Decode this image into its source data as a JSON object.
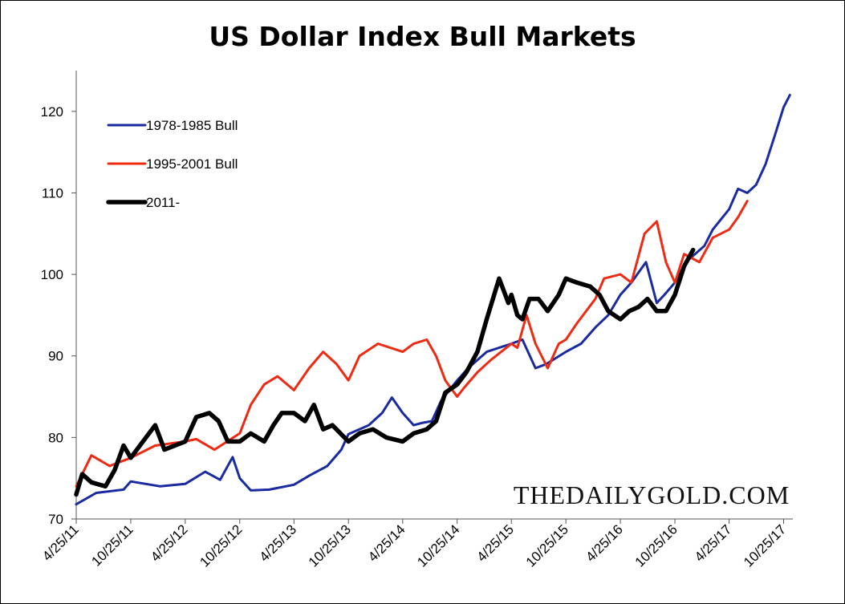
{
  "chart_data": {
    "type": "line",
    "title": "US Dollar Index Bull Markets",
    "xlabel": "",
    "ylabel": "",
    "ylim": [
      70,
      125
    ],
    "y_ticks": [
      70,
      80,
      90,
      100,
      110,
      120
    ],
    "x_ticks": [
      "4/25/11",
      "10/25/11",
      "4/25/12",
      "10/25/12",
      "4/25/13",
      "10/25/13",
      "4/25/14",
      "10/25/14",
      "4/25/15",
      "10/25/15",
      "4/25/16",
      "10/25/16",
      "4/25/17",
      "10/25/17"
    ],
    "xlim": [
      "4/25/11",
      "11/25/17"
    ],
    "grid": false,
    "legend_position": "top-left",
    "series": [
      {
        "name": "1978-1985 Bull",
        "color": "#1a2aa0",
        "points": [
          [
            "4/25/11",
            71.8
          ],
          [
            "7/1/11",
            73.2
          ],
          [
            "10/1/11",
            73.6
          ],
          [
            "10/25/11",
            74.6
          ],
          [
            "2/1/12",
            74.0
          ],
          [
            "4/25/12",
            74.3
          ],
          [
            "7/1/12",
            75.8
          ],
          [
            "8/20/12",
            74.8
          ],
          [
            "10/1/12",
            77.6
          ],
          [
            "10/25/12",
            75.0
          ],
          [
            "12/1/12",
            73.5
          ],
          [
            "2/1/13",
            73.6
          ],
          [
            "4/25/13",
            74.2
          ],
          [
            "6/15/13",
            75.3
          ],
          [
            "8/15/13",
            76.5
          ],
          [
            "10/1/13",
            78.5
          ],
          [
            "10/25/13",
            80.4
          ],
          [
            "1/1/14",
            81.5
          ],
          [
            "2/15/14",
            83.0
          ],
          [
            "3/20/14",
            84.9
          ],
          [
            "4/25/14",
            83.0
          ],
          [
            "6/1/14",
            81.5
          ],
          [
            "7/1/14",
            81.8
          ],
          [
            "8/1/14",
            82.0
          ],
          [
            "9/1/14",
            84.5
          ],
          [
            "10/25/14",
            87.0
          ],
          [
            "12/1/14",
            88.5
          ],
          [
            "2/1/15",
            90.5
          ],
          [
            "4/25/15",
            91.5
          ],
          [
            "6/1/15",
            92.0
          ],
          [
            "7/15/15",
            88.5
          ],
          [
            "8/20/15",
            89.0
          ],
          [
            "10/25/15",
            90.5
          ],
          [
            "12/15/15",
            91.5
          ],
          [
            "2/1/16",
            93.5
          ],
          [
            "3/15/16",
            95.0
          ],
          [
            "4/25/16",
            97.5
          ],
          [
            "6/1/16",
            99.0
          ],
          [
            "7/20/16",
            101.5
          ],
          [
            "8/25/16",
            96.5
          ],
          [
            "9/20/16",
            97.5
          ],
          [
            "10/25/16",
            99.0
          ],
          [
            "12/1/16",
            101.5
          ],
          [
            "2/1/17",
            103.5
          ],
          [
            "3/1/17",
            105.5
          ],
          [
            "4/25/17",
            108.0
          ],
          [
            "5/25/17",
            110.5
          ],
          [
            "6/25/17",
            110.0
          ],
          [
            "7/25/17",
            111.0
          ],
          [
            "8/25/17",
            113.5
          ],
          [
            "9/25/17",
            117.0
          ],
          [
            "10/25/17",
            120.5
          ],
          [
            "11/15/17",
            122.0
          ]
        ]
      },
      {
        "name": "1995-2001 Bull",
        "color": "#ee2a12",
        "points": [
          [
            "4/25/11",
            74.0
          ],
          [
            "6/15/11",
            77.8
          ],
          [
            "8/15/11",
            76.5
          ],
          [
            "10/25/11",
            77.5
          ],
          [
            "1/15/12",
            79.0
          ],
          [
            "4/25/12",
            79.5
          ],
          [
            "6/1/12",
            79.8
          ],
          [
            "8/1/12",
            78.5
          ],
          [
            "10/25/12",
            80.5
          ],
          [
            "12/1/12",
            84.0
          ],
          [
            "1/15/13",
            86.5
          ],
          [
            "3/1/13",
            87.5
          ],
          [
            "4/25/13",
            85.8
          ],
          [
            "6/15/13",
            88.5
          ],
          [
            "8/1/13",
            90.5
          ],
          [
            "9/15/13",
            89.0
          ],
          [
            "10/25/13",
            87.0
          ],
          [
            "12/1/13",
            90.0
          ],
          [
            "2/1/14",
            91.5
          ],
          [
            "4/25/14",
            90.5
          ],
          [
            "6/1/14",
            91.5
          ],
          [
            "7/15/14",
            92.0
          ],
          [
            "8/15/14",
            90.0
          ],
          [
            "9/15/14",
            87.0
          ],
          [
            "10/25/14",
            85.0
          ],
          [
            "11/15/14",
            86.0
          ],
          [
            "1/1/15",
            88.0
          ],
          [
            "2/15/15",
            89.5
          ],
          [
            "4/25/15",
            91.5
          ],
          [
            "5/15/15",
            91.0
          ],
          [
            "6/15/15",
            95.0
          ],
          [
            "7/15/15",
            91.5
          ],
          [
            "8/25/15",
            88.5
          ],
          [
            "10/1/15",
            91.5
          ],
          [
            "10/25/15",
            92.0
          ],
          [
            "12/1/15",
            94.0
          ],
          [
            "2/1/16",
            97.0
          ],
          [
            "3/1/16",
            99.5
          ],
          [
            "4/25/16",
            100.0
          ],
          [
            "6/1/16",
            99.0
          ],
          [
            "7/15/16",
            105.0
          ],
          [
            "8/25/16",
            106.5
          ],
          [
            "9/25/16",
            101.5
          ],
          [
            "10/25/16",
            99.0
          ],
          [
            "11/25/16",
            102.5
          ],
          [
            "1/15/17",
            101.5
          ],
          [
            "3/1/17",
            104.5
          ],
          [
            "4/25/17",
            105.5
          ],
          [
            "5/25/17",
            107.0
          ],
          [
            "6/25/17",
            109.0
          ]
        ]
      },
      {
        "name": "2011-",
        "color": "#000000",
        "points": [
          [
            "4/25/11",
            73.0
          ],
          [
            "5/15/11",
            75.5
          ],
          [
            "6/15/11",
            74.5
          ],
          [
            "8/1/11",
            74.0
          ],
          [
            "9/1/11",
            76.0
          ],
          [
            "10/1/11",
            79.0
          ],
          [
            "10/25/11",
            77.5
          ],
          [
            "12/15/11",
            80.0
          ],
          [
            "1/15/12",
            81.5
          ],
          [
            "2/15/12",
            78.5
          ],
          [
            "4/25/12",
            79.5
          ],
          [
            "6/1/12",
            82.5
          ],
          [
            "7/15/12",
            83.0
          ],
          [
            "8/15/12",
            82.0
          ],
          [
            "9/15/12",
            79.5
          ],
          [
            "10/25/12",
            79.5
          ],
          [
            "12/1/12",
            80.5
          ],
          [
            "1/15/13",
            79.5
          ],
          [
            "2/15/13",
            81.5
          ],
          [
            "3/15/13",
            83.0
          ],
          [
            "4/25/13",
            83.0
          ],
          [
            "6/1/13",
            82.0
          ],
          [
            "7/1/13",
            84.0
          ],
          [
            "8/1/13",
            81.0
          ],
          [
            "9/1/13",
            81.5
          ],
          [
            "10/25/13",
            79.5
          ],
          [
            "12/1/13",
            80.5
          ],
          [
            "1/15/14",
            81.0
          ],
          [
            "3/1/14",
            80.0
          ],
          [
            "4/25/14",
            79.5
          ],
          [
            "6/1/14",
            80.5
          ],
          [
            "7/15/14",
            81.0
          ],
          [
            "8/15/14",
            82.0
          ],
          [
            "9/15/14",
            85.5
          ],
          [
            "10/25/14",
            86.5
          ],
          [
            "11/25/14",
            88.0
          ],
          [
            "1/1/15",
            90.5
          ],
          [
            "2/1/15",
            94.5
          ],
          [
            "3/15/15",
            99.5
          ],
          [
            "4/15/15",
            96.5
          ],
          [
            "4/25/15",
            97.5
          ],
          [
            "5/15/15",
            95.0
          ],
          [
            "6/1/15",
            94.5
          ],
          [
            "6/25/15",
            97.0
          ],
          [
            "7/25/15",
            97.0
          ],
          [
            "8/25/15",
            95.5
          ],
          [
            "10/1/15",
            97.5
          ],
          [
            "10/25/15",
            99.5
          ],
          [
            "12/1/15",
            99.0
          ],
          [
            "1/15/16",
            98.5
          ],
          [
            "2/15/16",
            97.5
          ],
          [
            "3/15/16",
            95.5
          ],
          [
            "4/25/16",
            94.5
          ],
          [
            "5/25/16",
            95.5
          ],
          [
            "6/25/16",
            96.0
          ],
          [
            "7/25/16",
            97.0
          ],
          [
            "8/25/16",
            95.5
          ],
          [
            "9/25/16",
            95.5
          ],
          [
            "10/25/16",
            97.5
          ],
          [
            "11/25/16",
            101.0
          ],
          [
            "12/25/16",
            103.0
          ]
        ]
      }
    ]
  },
  "watermark": "THEDAILYGOLD.COM"
}
